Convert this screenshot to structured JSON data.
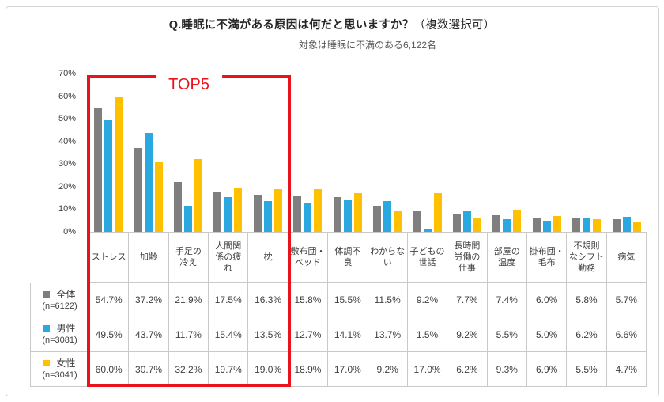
{
  "title": {
    "main": "Q.睡眠に不満がある原因は何だと思いますか？",
    "paren": "（複数選択可）"
  },
  "subtitle": "対象は睡眠に不満のある6,122名",
  "annotation": {
    "label": "TOP5",
    "color": "#e8131b",
    "range": "first 5 categories"
  },
  "chart_data": {
    "type": "bar",
    "title": "Q.睡眠に不満がある原因は何だと思いますか？（複数選択可）",
    "subtitle": "対象は睡眠に不満のある6,122名",
    "categories": [
      "ストレス",
      "加齢",
      "手足の冷え",
      "人間関係の疲れ",
      "枕",
      "敷布団・ベッド",
      "体調不良",
      "わからない",
      "子どもの世話",
      "長時間労働の仕事",
      "部屋の温度",
      "掛布団・毛布",
      "不規則なシフト勤務",
      "病気"
    ],
    "categories_display": [
      "ストレス",
      "加齢",
      "手足の\n冷え",
      "人間関\n係の疲\nれ",
      "枕",
      "敷布団・\nベッド",
      "体調不\n良",
      "わからな\nい",
      "子どもの\n世話",
      "長時間\n労働の\n仕事",
      "部屋の\n温度",
      "掛布団・\n毛布",
      "不規則\nなシフト\n勤務",
      "病気"
    ],
    "series": [
      {
        "id": "overall",
        "name": "全体",
        "n_label": "(n=6122)",
        "color": "#7f7f7f",
        "values": [
          54.7,
          37.2,
          21.9,
          17.5,
          16.3,
          15.8,
          15.5,
          11.5,
          9.2,
          7.7,
          7.4,
          6.0,
          5.8,
          5.7
        ]
      },
      {
        "id": "male",
        "name": "男性",
        "n_label": "(n=3081)",
        "color": "#29a9e0",
        "values": [
          49.5,
          43.7,
          11.7,
          15.4,
          13.5,
          12.7,
          14.1,
          13.7,
          1.5,
          9.2,
          5.5,
          5.0,
          6.2,
          6.6
        ]
      },
      {
        "id": "female",
        "name": "女性",
        "n_label": "(n=3041)",
        "color": "#ffc000",
        "values": [
          60.0,
          30.7,
          32.2,
          19.7,
          19.0,
          18.9,
          17.0,
          9.2,
          17.0,
          6.2,
          9.3,
          6.9,
          5.5,
          4.7
        ]
      }
    ],
    "ylim": [
      0,
      70
    ],
    "yticks": [
      "70%",
      "60%",
      "50%",
      "40%",
      "30%",
      "20%",
      "10%",
      "0%"
    ],
    "grid": false,
    "legend_position": "table-row-headers",
    "value_suffix": "%"
  },
  "colors": {
    "bar_gray": "#7f7f7f",
    "bar_blue": "#29a9e0",
    "bar_yellow": "#ffc000",
    "accent_red": "#e8131b",
    "table_border": "#c9c9c9",
    "text": "#404040"
  }
}
